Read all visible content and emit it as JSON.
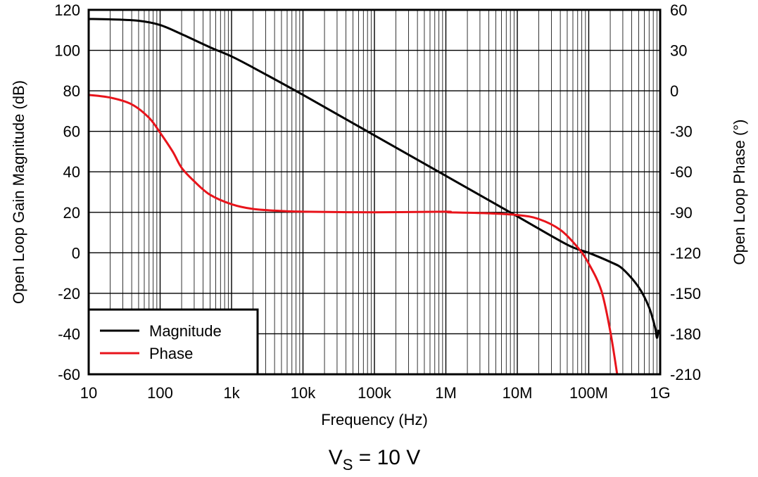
{
  "chart_data": {
    "type": "line",
    "x_scale": "log",
    "x_range": [
      10,
      1000000000
    ],
    "xlabel": "Frequency (Hz)",
    "x_ticks": [
      {
        "value": 10,
        "label": "10"
      },
      {
        "value": 100,
        "label": "100"
      },
      {
        "value": 1000,
        "label": "1k"
      },
      {
        "value": 10000,
        "label": "10k"
      },
      {
        "value": 100000,
        "label": "100k"
      },
      {
        "value": 1000000,
        "label": "1M"
      },
      {
        "value": 10000000,
        "label": "10M"
      },
      {
        "value": 100000000,
        "label": "100M"
      },
      {
        "value": 1000000000,
        "label": "1G"
      }
    ],
    "y_left": {
      "label": "Open Loop Gain Magnitude (dB)",
      "range": [
        -60,
        120
      ],
      "ticks": [
        -60,
        -40,
        -20,
        0,
        20,
        40,
        60,
        80,
        100,
        120
      ]
    },
    "y_right": {
      "label": "Open Loop Phase (°)",
      "range": [
        -210,
        60
      ],
      "ticks": [
        -210,
        -180,
        -150,
        -120,
        -90,
        -60,
        -30,
        0,
        30,
        60
      ]
    },
    "grid": true,
    "legend": {
      "placement": "bottom-left",
      "entries": [
        {
          "name": "Magnitude",
          "color": "#000000"
        },
        {
          "name": "Phase",
          "color": "#e8141b"
        }
      ]
    },
    "series": [
      {
        "name": "Magnitude",
        "axis": "left",
        "color": "#000000",
        "points": [
          [
            10,
            115.5
          ],
          [
            20,
            115.3
          ],
          [
            50,
            114.6
          ],
          [
            100,
            112.5
          ],
          [
            200,
            108
          ],
          [
            500,
            101.5
          ],
          [
            1000,
            97
          ],
          [
            2000,
            91.5
          ],
          [
            10000,
            78
          ],
          [
            100000,
            58
          ],
          [
            1000000,
            38
          ],
          [
            10000000,
            18
          ],
          [
            50000000,
            4
          ],
          [
            100000000,
            0
          ],
          [
            200000000,
            -4.5
          ],
          [
            300000000,
            -8
          ],
          [
            500000000,
            -17
          ],
          [
            700000000,
            -27
          ],
          [
            850000000,
            -37
          ],
          [
            900000000,
            -42
          ],
          [
            950000000,
            -38
          ]
        ]
      },
      {
        "name": "Phase",
        "axis": "right",
        "color": "#e8141b",
        "points": [
          [
            10,
            -3
          ],
          [
            20,
            -5
          ],
          [
            40,
            -10
          ],
          [
            70,
            -20
          ],
          [
            100,
            -31
          ],
          [
            150,
            -45
          ],
          [
            200,
            -57
          ],
          [
            300,
            -67
          ],
          [
            500,
            -77
          ],
          [
            1000,
            -84
          ],
          [
            2000,
            -87.5
          ],
          [
            5000,
            -89
          ],
          [
            10000,
            -89.5
          ],
          [
            100000,
            -90
          ],
          [
            1000000,
            -89.5
          ],
          [
            1100000,
            -90
          ],
          [
            3000000,
            -90.5
          ],
          [
            10000000,
            -92
          ],
          [
            20000000,
            -95
          ],
          [
            40000000,
            -103
          ],
          [
            70000000,
            -116
          ],
          [
            100000000,
            -128
          ],
          [
            150000000,
            -148
          ],
          [
            200000000,
            -178
          ],
          [
            250000000,
            -210
          ]
        ]
      }
    ]
  },
  "caption": {
    "main": "V",
    "subscript": "S",
    "rest": " = 10 V"
  }
}
